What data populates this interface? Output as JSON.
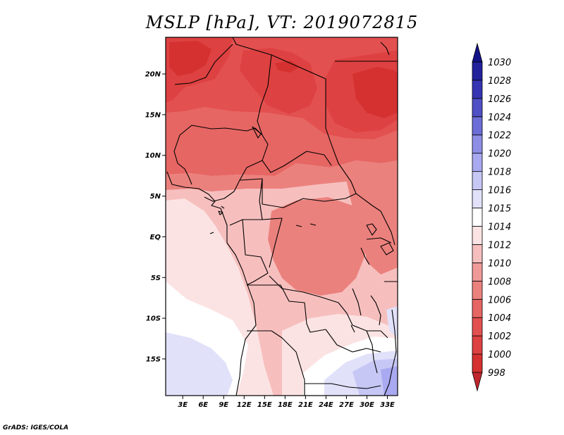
{
  "title": "MSLP [hPa], VT: 2019072815",
  "credit": "GrADS: IGES/COLA",
  "map": {
    "lat_ticks": [
      "20N",
      "15N",
      "10N",
      "5N",
      "EQ",
      "5S",
      "10S",
      "15S"
    ],
    "lat_values": [
      20,
      15,
      10,
      5,
      0,
      -5,
      -10,
      -15
    ],
    "lon_ticks": [
      "3E",
      "6E",
      "9E",
      "12E",
      "15E",
      "18E",
      "21E",
      "24E",
      "27E",
      "30E",
      "33E"
    ],
    "lon_values": [
      3,
      6,
      9,
      12,
      15,
      18,
      21,
      24,
      27,
      30,
      33
    ],
    "lon_range": [
      0.5,
      34.5
    ],
    "lat_range": [
      -19.5,
      24.5
    ]
  },
  "colorbar": {
    "levels": [
      "998",
      "1000",
      "1002",
      "1004",
      "1006",
      "1008",
      "1010",
      "1012",
      "1014",
      "1015",
      "1016",
      "1018",
      "1020",
      "1022",
      "1024",
      "1026",
      "1028",
      "1030"
    ],
    "colors": [
      "#c0272d",
      "#d43130",
      "#de4141",
      "#e35050",
      "#e66663",
      "#eb817d",
      "#ef9a98",
      "#f6bfbe",
      "#fce3e3",
      "#ffffff",
      "#e1e1fa",
      "#c7c7f6",
      "#a9a9f1",
      "#8e8ee7",
      "#6d6dd8",
      "#4f4fc6",
      "#3535b3",
      "#22229d",
      "#141488"
    ]
  },
  "chart_data": {
    "type": "heatmap",
    "title": "MSLP [hPa], VT: 2019072815",
    "variable": "MSLP",
    "units": "hPa",
    "valid_time": "2019072815",
    "contour_levels": [
      998,
      1000,
      1002,
      1004,
      1006,
      1008,
      1010,
      1012,
      1014,
      1015,
      1016,
      1018,
      1020,
      1022,
      1024,
      1026,
      1028,
      1030
    ],
    "x_ticks": [
      "3E",
      "6E",
      "9E",
      "12E",
      "15E",
      "18E",
      "21E",
      "24E",
      "27E",
      "30E",
      "33E"
    ],
    "y_ticks": [
      "20N",
      "15N",
      "10N",
      "5N",
      "EQ",
      "5S",
      "10S",
      "15S"
    ]
  }
}
